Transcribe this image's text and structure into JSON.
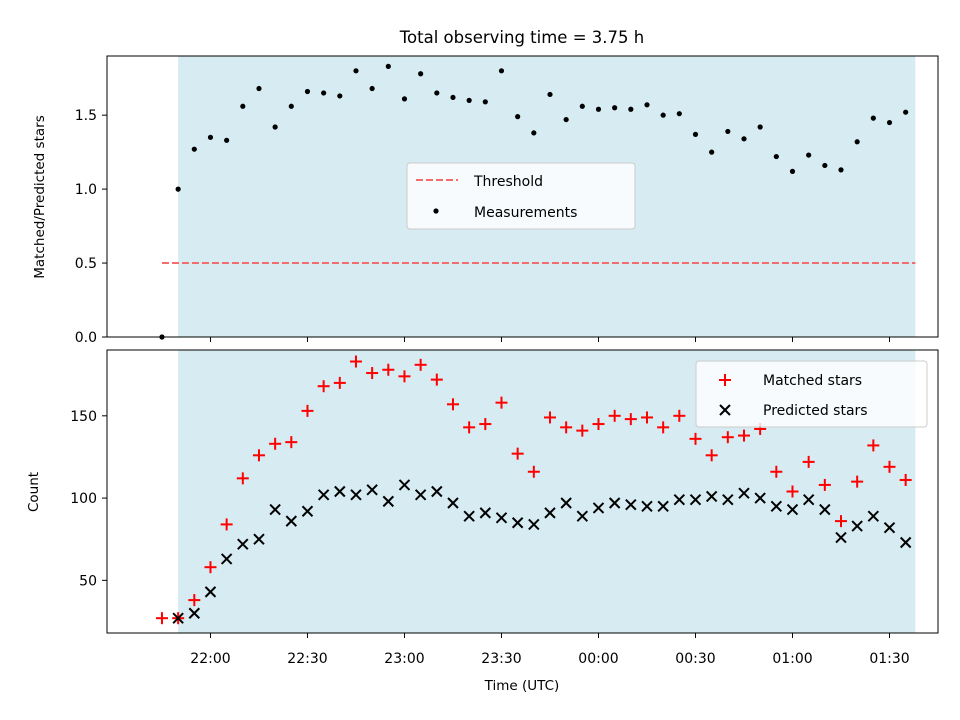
{
  "chart_data": [
    {
      "type": "scatter",
      "title": "Total observing time = 3.75 h",
      "xlabel": "",
      "ylabel": "Matched/Predicted stars",
      "ylim": [
        0,
        1.9
      ],
      "yticks": [
        "0.0",
        "0.5",
        "1.0",
        "1.5"
      ],
      "xlim": [
        "21:28",
        "01:45"
      ],
      "shaded_interval": [
        "21:50",
        "01:38"
      ],
      "shade_color": "#add8e6",
      "legend": "center",
      "threshold": {
        "name": "Threshold",
        "value": 0.5,
        "x_range": [
          "21:45",
          "01:38"
        ],
        "color": "#f26d6d"
      },
      "series": [
        {
          "name": "Measurements",
          "color": "#000000",
          "x": [
            "21:45",
            "21:50",
            "21:55",
            "22:00",
            "22:05",
            "22:10",
            "22:15",
            "22:20",
            "22:25",
            "22:30",
            "22:35",
            "22:40",
            "22:45",
            "22:50",
            "22:55",
            "23:00",
            "23:05",
            "23:10",
            "23:15",
            "23:20",
            "23:25",
            "23:30",
            "23:35",
            "23:40",
            "23:45",
            "23:50",
            "23:55",
            "00:00",
            "00:05",
            "00:10",
            "00:15",
            "00:20",
            "00:25",
            "00:30",
            "00:35",
            "00:40",
            "00:45",
            "00:50",
            "00:55",
            "01:00",
            "01:05",
            "01:10",
            "01:15",
            "01:20",
            "01:25",
            "01:30",
            "01:35"
          ],
          "y": [
            0.0,
            1.0,
            1.27,
            1.35,
            1.33,
            1.56,
            1.68,
            1.42,
            1.56,
            1.66,
            1.65,
            1.63,
            1.8,
            1.68,
            1.83,
            1.61,
            1.78,
            1.65,
            1.62,
            1.6,
            1.59,
            1.8,
            1.49,
            1.38,
            1.64,
            1.47,
            1.56,
            1.54,
            1.55,
            1.54,
            1.57,
            1.5,
            1.51,
            1.37,
            1.25,
            1.39,
            1.34,
            1.42,
            1.22,
            1.12,
            1.23,
            1.16,
            1.13,
            1.32,
            1.48,
            1.45,
            1.52
          ]
        }
      ]
    },
    {
      "type": "scatter",
      "xlabel": "Time (UTC)",
      "ylabel": "Count",
      "ylim": [
        18,
        190
      ],
      "yticks": [
        "50",
        "100",
        "150"
      ],
      "xlim": [
        "21:28",
        "01:45"
      ],
      "xticks": [
        "22:00",
        "22:30",
        "23:00",
        "23:30",
        "00:00",
        "00:30",
        "01:00",
        "01:30"
      ],
      "shaded_interval": [
        "21:50",
        "01:38"
      ],
      "shade_color": "#add8e6",
      "legend": "top-right",
      "series": [
        {
          "name": "Matched stars",
          "marker": "+",
          "color": "#ff0000",
          "x": [
            "21:45",
            "21:50",
            "21:55",
            "22:00",
            "22:05",
            "22:10",
            "22:15",
            "22:20",
            "22:25",
            "22:30",
            "22:35",
            "22:40",
            "22:45",
            "22:50",
            "22:55",
            "23:00",
            "23:05",
            "23:10",
            "23:15",
            "23:20",
            "23:25",
            "23:30",
            "23:35",
            "23:40",
            "23:45",
            "23:50",
            "23:55",
            "00:00",
            "00:05",
            "00:10",
            "00:15",
            "00:20",
            "00:25",
            "00:30",
            "00:35",
            "00:40",
            "00:45",
            "00:50",
            "00:55",
            "01:00",
            "01:05",
            "01:10",
            "01:15",
            "01:20",
            "01:25",
            "01:30",
            "01:35"
          ],
          "y": [
            27,
            27,
            38,
            58,
            84,
            112,
            126,
            133,
            134,
            153,
            168,
            170,
            183,
            176,
            178,
            174,
            181,
            172,
            157,
            143,
            145,
            158,
            127,
            116,
            149,
            143,
            141,
            145,
            150,
            148,
            149,
            143,
            150,
            136,
            126,
            137,
            138,
            142,
            116,
            104,
            122,
            108,
            86,
            110,
            132,
            119,
            111
          ]
        },
        {
          "name": "Predicted stars",
          "marker": "x",
          "color": "#000000",
          "x": [
            "21:50",
            "21:55",
            "22:00",
            "22:05",
            "22:10",
            "22:15",
            "22:20",
            "22:25",
            "22:30",
            "22:35",
            "22:40",
            "22:45",
            "22:50",
            "22:55",
            "23:00",
            "23:05",
            "23:10",
            "23:15",
            "23:20",
            "23:25",
            "23:30",
            "23:35",
            "23:40",
            "23:45",
            "23:50",
            "23:55",
            "00:00",
            "00:05",
            "00:10",
            "00:15",
            "00:20",
            "00:25",
            "00:30",
            "00:35",
            "00:40",
            "00:45",
            "00:50",
            "00:55",
            "01:00",
            "01:05",
            "01:10",
            "01:15",
            "01:20",
            "01:25",
            "01:30",
            "01:35"
          ],
          "y": [
            27,
            30,
            43,
            63,
            72,
            75,
            93,
            86,
            92,
            102,
            104,
            102,
            105,
            98,
            108,
            102,
            104,
            97,
            89,
            91,
            88,
            85,
            84,
            91,
            97,
            89,
            94,
            97,
            96,
            95,
            95,
            99,
            99,
            101,
            99,
            103,
            100,
            95,
            93,
            99,
            93,
            76,
            83,
            89,
            82,
            73
          ]
        }
      ]
    }
  ]
}
